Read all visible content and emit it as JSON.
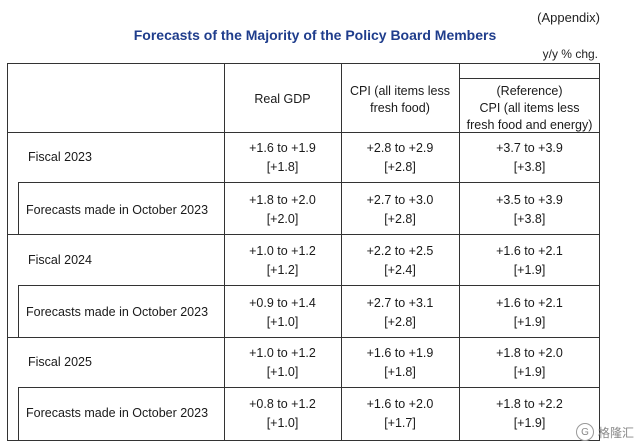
{
  "appendix": "(Appendix)",
  "title": "Forecasts of the Majority of the Policy Board Members",
  "unit": "y/y % chg.",
  "headers": {
    "gdp": "Real GDP",
    "cpi_line1": "CPI (all items less",
    "cpi_line2": "fresh food)",
    "ref_line1": "(Reference)",
    "ref_line2": "CPI (all items less",
    "ref_line3": "fresh food and energy)"
  },
  "rows": [
    {
      "label": "Fiscal 2023",
      "gdp_range": "+1.6 to +1.9",
      "gdp_median": "[+1.8]",
      "cpi_range": "+2.8 to +2.9",
      "cpi_median": "[+2.8]",
      "ref_range": "+3.7 to +3.9",
      "ref_median": "[+3.8]"
    },
    {
      "label": "Forecasts made in October 2023",
      "gdp_range": "+1.8 to +2.0",
      "gdp_median": "[+2.0]",
      "cpi_range": "+2.7 to +3.0",
      "cpi_median": "[+2.8]",
      "ref_range": "+3.5 to +3.9",
      "ref_median": "[+3.8]"
    },
    {
      "label": "Fiscal 2024",
      "gdp_range": "+1.0 to +1.2",
      "gdp_median": "[+1.2]",
      "cpi_range": "+2.2 to +2.5",
      "cpi_median": "[+2.4]",
      "ref_range": "+1.6 to +2.1",
      "ref_median": "[+1.9]"
    },
    {
      "label": "Forecasts made in October 2023",
      "gdp_range": "+0.9 to +1.4",
      "gdp_median": "[+1.0]",
      "cpi_range": "+2.7 to +3.1",
      "cpi_median": "[+2.8]",
      "ref_range": "+1.6 to +2.1",
      "ref_median": "[+1.9]"
    },
    {
      "label": "Fiscal 2025",
      "gdp_range": "+1.0 to +1.2",
      "gdp_median": "[+1.0]",
      "cpi_range": "+1.6 to +1.9",
      "cpi_median": "[+1.8]",
      "ref_range": "+1.8 to +2.0",
      "ref_median": "[+1.9]"
    },
    {
      "label": "Forecasts made in October 2023",
      "gdp_range": "+0.8 to +1.2",
      "gdp_median": "[+1.0]",
      "cpi_range": "+1.6 to +2.0",
      "cpi_median": "[+1.7]",
      "ref_range": "+1.8 to +2.2",
      "ref_median": "[+1.9]"
    }
  ],
  "logo_text": "格隆汇",
  "logo_mark": "G"
}
